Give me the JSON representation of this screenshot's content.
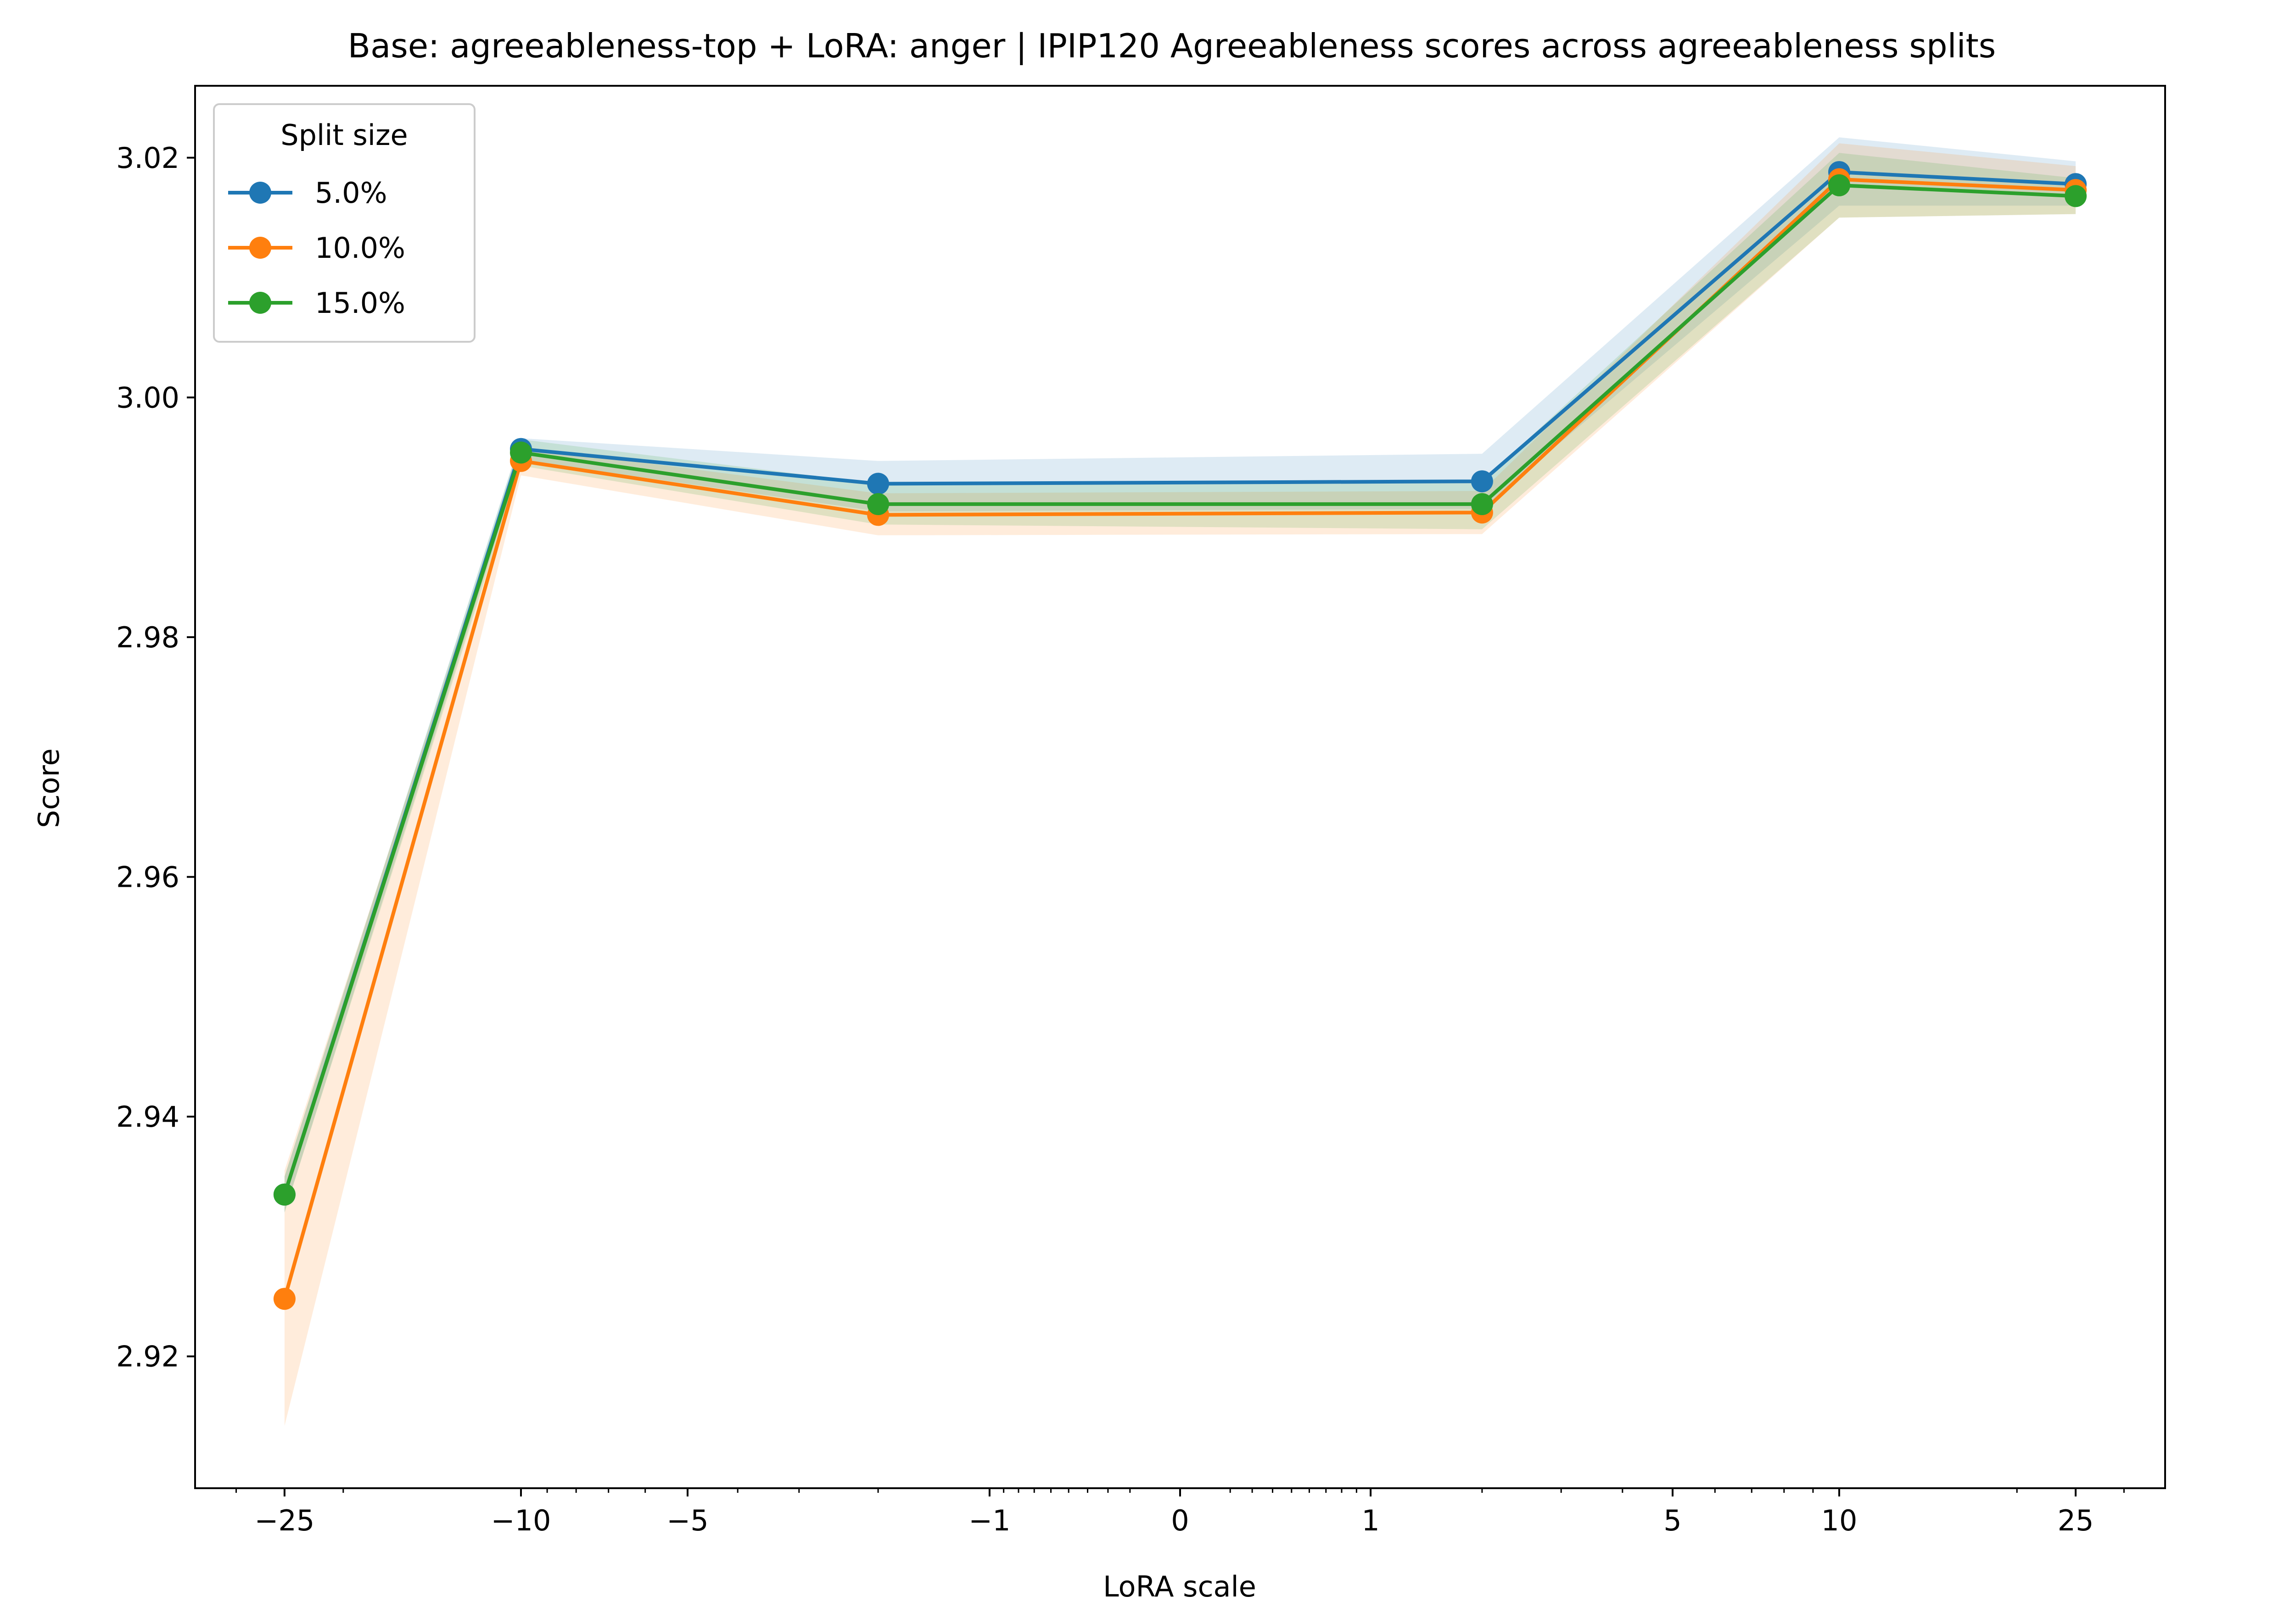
{
  "chart_data": {
    "type": "line",
    "title": "Base: agreeableness-top + LoRA: anger | IPIP120 Agreeableness scores across agreeableness splits",
    "xlabel": "LoRA scale",
    "ylabel": "Score",
    "x_scale": "symlog",
    "x": [
      -25,
      -10,
      -2,
      2,
      10,
      25
    ],
    "xlim": [
      -35,
      35
    ],
    "ylim": [
      2.909,
      3.026
    ],
    "y_ticks": [
      2.92,
      2.94,
      2.96,
      2.98,
      3.0,
      3.02
    ],
    "y_tick_labels": [
      "2.92",
      "2.94",
      "2.96",
      "2.98",
      "3.00",
      "3.02"
    ],
    "x_ticks": [
      -25,
      -10,
      -5,
      -1,
      0,
      1,
      5,
      10,
      25
    ],
    "x_tick_labels": [
      "−25",
      "−10",
      "−5",
      "−1",
      "0",
      "1",
      "5",
      "10",
      "25"
    ],
    "legend": {
      "title": "Split size",
      "placement": "top-left"
    },
    "series": [
      {
        "name": "5.0%",
        "color": "#1f77b4",
        "values": [
          2.9335,
          2.9957,
          2.9928,
          2.993,
          3.0188,
          3.0178
        ],
        "band_low": [
          2.932,
          2.9948,
          2.9905,
          2.9907,
          3.016,
          3.016
        ],
        "band_high": [
          2.935,
          2.9966,
          2.9947,
          2.9953,
          3.0217,
          3.0197
        ]
      },
      {
        "name": "10.0%",
        "color": "#ff7f0e",
        "values": [
          2.9248,
          2.9947,
          2.9902,
          2.9904,
          3.0182,
          3.0173
        ],
        "band_low": [
          2.9142,
          2.9935,
          2.9885,
          2.9886,
          3.015,
          3.0153
        ],
        "band_high": [
          2.9355,
          2.9959,
          2.992,
          2.9922,
          3.0212,
          3.0193
        ]
      },
      {
        "name": "15.0%",
        "color": "#2ca02c",
        "values": [
          2.9335,
          2.9954,
          2.9911,
          2.9911,
          3.0177,
          3.0168
        ],
        "band_low": [
          2.932,
          2.9943,
          2.9894,
          2.989,
          3.015,
          3.0153
        ],
        "band_high": [
          2.935,
          2.9965,
          2.9928,
          2.993,
          3.0204,
          3.0183
        ]
      }
    ]
  }
}
